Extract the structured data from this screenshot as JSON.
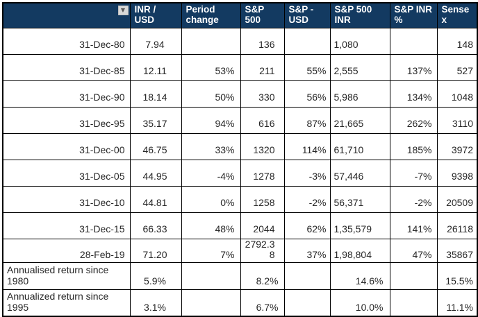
{
  "colors": {
    "header_bg": "#133A61",
    "header_text": "#FFFFFF",
    "grid_border": "#000000",
    "filter_button_bg": "#D9D9D9",
    "filter_glyph": "#595959",
    "body_text": "#262626"
  },
  "table": {
    "filter_icon_glyph": "▼",
    "columns": [
      "",
      "INR /\nUSD",
      "Period\nchange",
      "S&P\n500",
      "S&P -\nUSD",
      "S&P 500\nINR",
      "S&P INR\n%",
      "Sense\nx"
    ],
    "rows": [
      [
        "31-Dec-80",
        "7.94",
        "",
        "136",
        "",
        "1,080",
        "",
        "148"
      ],
      [
        "31-Dec-85",
        "12.11",
        "53%",
        "211",
        "55%",
        "2,555",
        "137%",
        "527"
      ],
      [
        "31-Dec-90",
        "18.14",
        "50%",
        "330",
        "56%",
        "5,986",
        "134%",
        "1048"
      ],
      [
        "31-Dec-95",
        "35.17",
        "94%",
        "616",
        "87%",
        "21,665",
        "262%",
        "3110"
      ],
      [
        "31-Dec-00",
        "46.75",
        "33%",
        "1320",
        "114%",
        "61,710",
        "185%",
        "3972"
      ],
      [
        "31-Dec-05",
        "44.95",
        "-4%",
        "1278",
        "-3%",
        "57,446",
        "-7%",
        "9398"
      ],
      [
        "31-Dec-10",
        "44.81",
        "0%",
        "1258",
        "-2%",
        "56,371",
        "-2%",
        "20509"
      ],
      [
        "31-Dec-15",
        "66.33",
        "48%",
        "2044",
        "62%",
        "1,35,579",
        "141%",
        "26118"
      ],
      [
        "28-Feb-19",
        "71.20",
        "7%",
        "2792.38",
        "37%",
        "1,98,804",
        "47%",
        "35867"
      ]
    ],
    "summary_rows": [
      [
        "Annualised return since 1980",
        "5.9%",
        "",
        "8.2%",
        "",
        "14.6%",
        "",
        "15.5%"
      ],
      [
        "Annualized return since 1995",
        "3.1%",
        "",
        "6.7%",
        "",
        "10.0%",
        "",
        "11.1%"
      ]
    ]
  }
}
